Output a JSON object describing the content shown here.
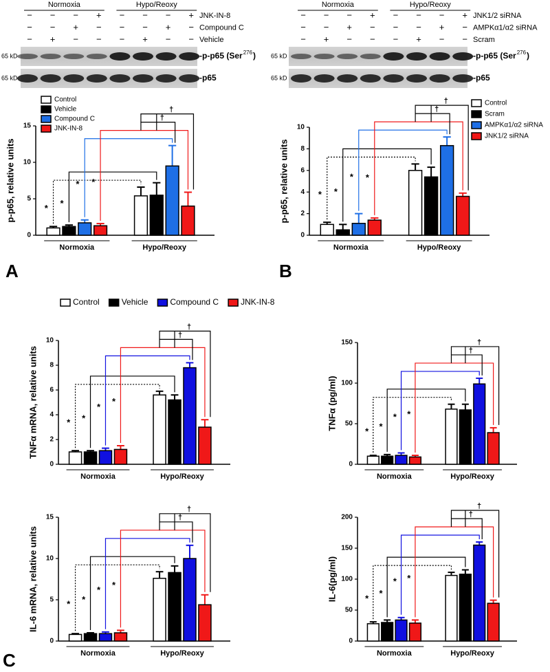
{
  "panel_labels": [
    "A",
    "B",
    "C"
  ],
  "blots": [
    {
      "groups": [
        "Normoxia",
        "Hypo/Reoxy"
      ],
      "treatments": [
        {
          "label": "JNK-IN-8",
          "signs": [
            "−",
            "−",
            "−",
            "+",
            "−",
            "−",
            "−",
            "+"
          ]
        },
        {
          "label": "Compound C",
          "signs": [
            "−",
            "−",
            "+",
            "−",
            "−",
            "−",
            "+",
            "−"
          ]
        },
        {
          "label": "Vehicle",
          "signs": [
            "−",
            "+",
            "−",
            "−",
            "−",
            "+",
            "−",
            "−"
          ]
        }
      ],
      "bands": [
        {
          "mw": "65 kD",
          "label": "-p-p65 (Ser",
          "sup": "276",
          "label_end": ")"
        },
        {
          "mw": "65 kD",
          "label": "-p65"
        }
      ]
    },
    {
      "groups": [
        "Normoxia",
        "Hypo/Reoxy"
      ],
      "treatments": [
        {
          "label": "JNK1/2 siRNA",
          "signs": [
            "−",
            "−",
            "−",
            "+",
            "−",
            "−",
            "−",
            "+"
          ]
        },
        {
          "label": "AMPKα1/α2 siRNA",
          "signs": [
            "−",
            "−",
            "+",
            "−",
            "−",
            "−",
            "+",
            "−"
          ]
        },
        {
          "label": "Scram",
          "signs": [
            "−",
            "+",
            "−",
            "−",
            "−",
            "+",
            "−",
            "−"
          ]
        }
      ],
      "bands": [
        {
          "mw": "65 kD",
          "label": "-p-p65 (Ser",
          "sup": "276",
          "label_end": ")"
        },
        {
          "mw": "65 kD",
          "label": "-p65"
        }
      ]
    }
  ],
  "chart_data": [
    {
      "type": "bar",
      "ylabel": "p-p65, relative units",
      "categories": [
        "Normoxia",
        "Hypo/Reoxy"
      ],
      "ylim": [
        0,
        15
      ],
      "yticks": [
        0,
        5,
        10,
        15
      ],
      "legend": "upper left",
      "series": [
        {
          "name": "Control",
          "color": "#ffffff",
          "values": [
            1.0,
            5.4
          ],
          "errors": [
            0.2,
            1.2
          ]
        },
        {
          "name": "Vehicle",
          "color": "#000000",
          "values": [
            1.2,
            5.5
          ],
          "errors": [
            0.2,
            1.7
          ]
        },
        {
          "name": "Compound C",
          "color": "#1e6fe6",
          "values": [
            1.7,
            9.5
          ],
          "errors": [
            0.4,
            2.8
          ]
        },
        {
          "name": "JNK-IN-8",
          "color": "#f01818",
          "values": [
            1.3,
            4.0
          ],
          "errors": [
            0.3,
            1.9
          ]
        }
      ],
      "stars": [
        "*",
        "*",
        "*",
        "*"
      ],
      "daggers": [
        "†",
        "†"
      ]
    },
    {
      "type": "bar",
      "ylabel": "p-p65, relative units",
      "categories": [
        "Normoxia",
        "Hypo/Reoxy"
      ],
      "ylim": [
        0,
        10
      ],
      "yticks": [
        0,
        2,
        4,
        6,
        8,
        10
      ],
      "legend": "upper right",
      "series": [
        {
          "name": "Control",
          "color": "#ffffff",
          "values": [
            1.0,
            6.0
          ],
          "errors": [
            0.2,
            0.6
          ]
        },
        {
          "name": "Scram",
          "color": "#000000",
          "values": [
            0.5,
            5.4
          ],
          "errors": [
            0.5,
            0.9
          ]
        },
        {
          "name": "AMPKα1/α2 siRNA",
          "color": "#1e6fe6",
          "values": [
            1.1,
            8.3
          ],
          "errors": [
            0.9,
            0.8
          ]
        },
        {
          "name": "JNK1/2 siRNA",
          "color": "#f01818",
          "values": [
            1.4,
            3.6
          ],
          "errors": [
            0.2,
            0.3
          ]
        }
      ],
      "stars": [
        "*",
        "*",
        "*",
        "*"
      ],
      "daggers": [
        "†",
        "†"
      ]
    },
    {
      "type": "bar",
      "ylabel": "TNFα mRNA, relative units",
      "categories": [
        "Normoxia",
        "Hypo/Reoxy"
      ],
      "ylim": [
        0,
        10
      ],
      "yticks": [
        0,
        2,
        4,
        6,
        8,
        10
      ],
      "legend": "top",
      "series": [
        {
          "name": "Control",
          "color": "#ffffff",
          "values": [
            1.0,
            5.6
          ],
          "errors": [
            0.1,
            0.3
          ]
        },
        {
          "name": "Vehicle",
          "color": "#000000",
          "values": [
            1.0,
            5.2
          ],
          "errors": [
            0.1,
            0.4
          ]
        },
        {
          "name": "Compound C",
          "color": "#1010e0",
          "values": [
            1.1,
            7.8
          ],
          "errors": [
            0.2,
            0.4
          ]
        },
        {
          "name": "JNK-IN-8",
          "color": "#f01818",
          "values": [
            1.2,
            3.0
          ],
          "errors": [
            0.3,
            0.6
          ]
        }
      ],
      "stars": [
        "*",
        "*",
        "*",
        "*"
      ],
      "daggers": [
        "†",
        "†"
      ]
    },
    {
      "type": "bar",
      "ylabel": "TNFα (pg/ml)",
      "categories": [
        "Normoxia",
        "Hypo/Reoxy"
      ],
      "ylim": [
        0,
        150
      ],
      "yticks": [
        0,
        50,
        100,
        150
      ],
      "series": [
        {
          "color": "#ffffff",
          "values": [
            10,
            68
          ],
          "errors": [
            1,
            6
          ]
        },
        {
          "color": "#000000",
          "values": [
            10,
            67
          ],
          "errors": [
            2,
            7
          ]
        },
        {
          "color": "#1010e0",
          "values": [
            11,
            99
          ],
          "errors": [
            3,
            7
          ]
        },
        {
          "color": "#f01818",
          "values": [
            9,
            39
          ],
          "errors": [
            2,
            6
          ]
        }
      ],
      "stars": [
        "*",
        "*",
        "*",
        "*"
      ],
      "daggers": [
        "†",
        "†"
      ]
    },
    {
      "type": "bar",
      "ylabel": "IL-6 mRNA, relative units",
      "categories": [
        "Normoxia",
        "Hypo/Reoxy"
      ],
      "ylim": [
        0,
        15
      ],
      "yticks": [
        0,
        5,
        10,
        15
      ],
      "series": [
        {
          "color": "#ffffff",
          "values": [
            0.8,
            7.6
          ],
          "errors": [
            0.1,
            0.8
          ]
        },
        {
          "color": "#000000",
          "values": [
            0.9,
            8.3
          ],
          "errors": [
            0.1,
            0.8
          ]
        },
        {
          "color": "#1010e0",
          "values": [
            0.9,
            10.0
          ],
          "errors": [
            0.2,
            1.6
          ]
        },
        {
          "color": "#f01818",
          "values": [
            1.0,
            4.4
          ],
          "errors": [
            0.3,
            1.2
          ]
        }
      ],
      "stars": [
        "*",
        "*",
        "*",
        "*"
      ],
      "daggers": [
        "†",
        "†"
      ]
    },
    {
      "type": "bar",
      "ylabel": "IL-6(pg/ml)",
      "categories": [
        "Normoxia",
        "Hypo/Reoxy"
      ],
      "ylim": [
        0,
        200
      ],
      "yticks": [
        0,
        50,
        100,
        150,
        200
      ],
      "series": [
        {
          "color": "#ffffff",
          "values": [
            28,
            106
          ],
          "errors": [
            3,
            5
          ]
        },
        {
          "color": "#000000",
          "values": [
            30,
            108
          ],
          "errors": [
            4,
            7
          ]
        },
        {
          "color": "#1010e0",
          "values": [
            34,
            155
          ],
          "errors": [
            4,
            5
          ]
        },
        {
          "color": "#f01818",
          "values": [
            29,
            61
          ],
          "errors": [
            5,
            5
          ]
        }
      ],
      "stars": [
        "*",
        "*",
        "*",
        "*"
      ],
      "daggers": [
        "†",
        "†"
      ]
    }
  ]
}
